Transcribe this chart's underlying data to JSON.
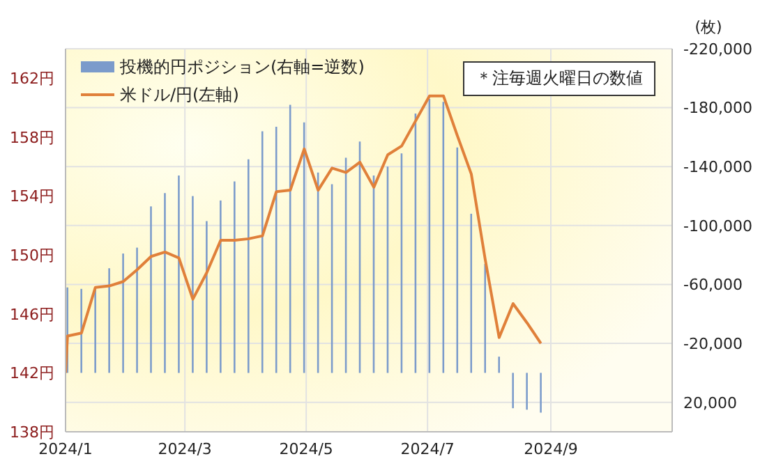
{
  "chart_data": {
    "type": "bar",
    "title": null,
    "y2label": "(枚)",
    "annotations": [
      "＊注毎週火曜日の数値"
    ],
    "x": [
      "2024-01-02",
      "2024-01-09",
      "2024-01-16",
      "2024-01-23",
      "2024-01-30",
      "2024-02-06",
      "2024-02-13",
      "2024-02-20",
      "2024-02-27",
      "2024-03-05",
      "2024-03-12",
      "2024-03-19",
      "2024-03-26",
      "2024-04-02",
      "2024-04-09",
      "2024-04-16",
      "2024-04-23",
      "2024-04-30",
      "2024-05-07",
      "2024-05-14",
      "2024-05-21",
      "2024-05-28",
      "2024-06-04",
      "2024-06-11",
      "2024-06-18",
      "2024-06-25",
      "2024-07-02",
      "2024-07-09",
      "2024-07-16",
      "2024-07-23",
      "2024-07-30",
      "2024-08-06",
      "2024-08-13",
      "2024-08-20",
      "2024-08-27"
    ],
    "series": [
      {
        "name": "投機的円ポジション(右軸=逆数)",
        "axis": "y2",
        "color": "#7b9bcb",
        "values": [
          -58000,
          -57000,
          -58000,
          -71000,
          -81000,
          -85000,
          -113000,
          -122000,
          -134000,
          -120000,
          -103000,
          -117000,
          -130000,
          -145000,
          -164000,
          -167000,
          -182000,
          -170000,
          -136000,
          -128000,
          -146000,
          -157000,
          -134000,
          -140000,
          -149000,
          -176000,
          -186000,
          -184000,
          -153000,
          -108000,
          -74000,
          -11000,
          24000,
          25000,
          27000
        ]
      },
      {
        "name": "米ドル/円(左軸)",
        "type": "line",
        "color": "#e0803a",
        "x": [
          "2024-01-01",
          "2024-01-02",
          "2024-01-09",
          "2024-01-16",
          "2024-01-23",
          "2024-01-30",
          "2024-02-06",
          "2024-02-13",
          "2024-02-20",
          "2024-02-27",
          "2024-03-05",
          "2024-03-12",
          "2024-03-19",
          "2024-03-26",
          "2024-04-02",
          "2024-04-09",
          "2024-04-16",
          "2024-04-23",
          "2024-04-30",
          "2024-05-07",
          "2024-05-14",
          "2024-05-21",
          "2024-05-28",
          "2024-06-04",
          "2024-06-11",
          "2024-06-18",
          "2024-06-25",
          "2024-07-02",
          "2024-07-09",
          "2024-07-16",
          "2024-07-23",
          "2024-07-30",
          "2024-08-06",
          "2024-08-13",
          "2024-08-20",
          "2024-08-27"
        ],
        "values": [
          142.0,
          144.5,
          144.7,
          147.8,
          147.9,
          148.2,
          149.0,
          149.9,
          150.2,
          149.8,
          147.0,
          148.8,
          151.0,
          151.0,
          151.1,
          151.3,
          154.3,
          154.4,
          157.2,
          154.4,
          155.9,
          155.6,
          156.3,
          154.6,
          156.8,
          157.4,
          159.1,
          160.8,
          160.8,
          158.1,
          155.5,
          149.7,
          144.4,
          146.7,
          145.4,
          144.0
        ]
      }
    ],
    "xlim": [
      "2024-01-01",
      "2024-11-01"
    ],
    "xticks": [
      {
        "value": "2024-01-01",
        "label": "2024/1"
      },
      {
        "value": "2024-03-01",
        "label": "2024/3"
      },
      {
        "value": "2024-05-01",
        "label": "2024/5"
      },
      {
        "value": "2024-07-01",
        "label": "2024/7"
      },
      {
        "value": "2024-09-01",
        "label": "2024/9"
      }
    ],
    "ylim": [
      138,
      164
    ],
    "yticks": [
      {
        "value": 138,
        "label": "138円"
      },
      {
        "value": 142,
        "label": "142円"
      },
      {
        "value": 146,
        "label": "146円"
      },
      {
        "value": 150,
        "label": "150円"
      },
      {
        "value": 154,
        "label": "154円"
      },
      {
        "value": 158,
        "label": "158円"
      },
      {
        "value": 162,
        "label": "162円"
      }
    ],
    "y2lim": [
      40000,
      -220000
    ],
    "y2ticks": [
      {
        "value": -220000,
        "label": "-220,000"
      },
      {
        "value": -180000,
        "label": "-180,000"
      },
      {
        "value": -140000,
        "label": "-140,000"
      },
      {
        "value": -100000,
        "label": "-100,000"
      },
      {
        "value": -60000,
        "label": "-60,000"
      },
      {
        "value": -20000,
        "label": "-20,000"
      },
      {
        "value": 20000,
        "label": "20,000"
      }
    ],
    "grid": true,
    "legend": "top left"
  }
}
